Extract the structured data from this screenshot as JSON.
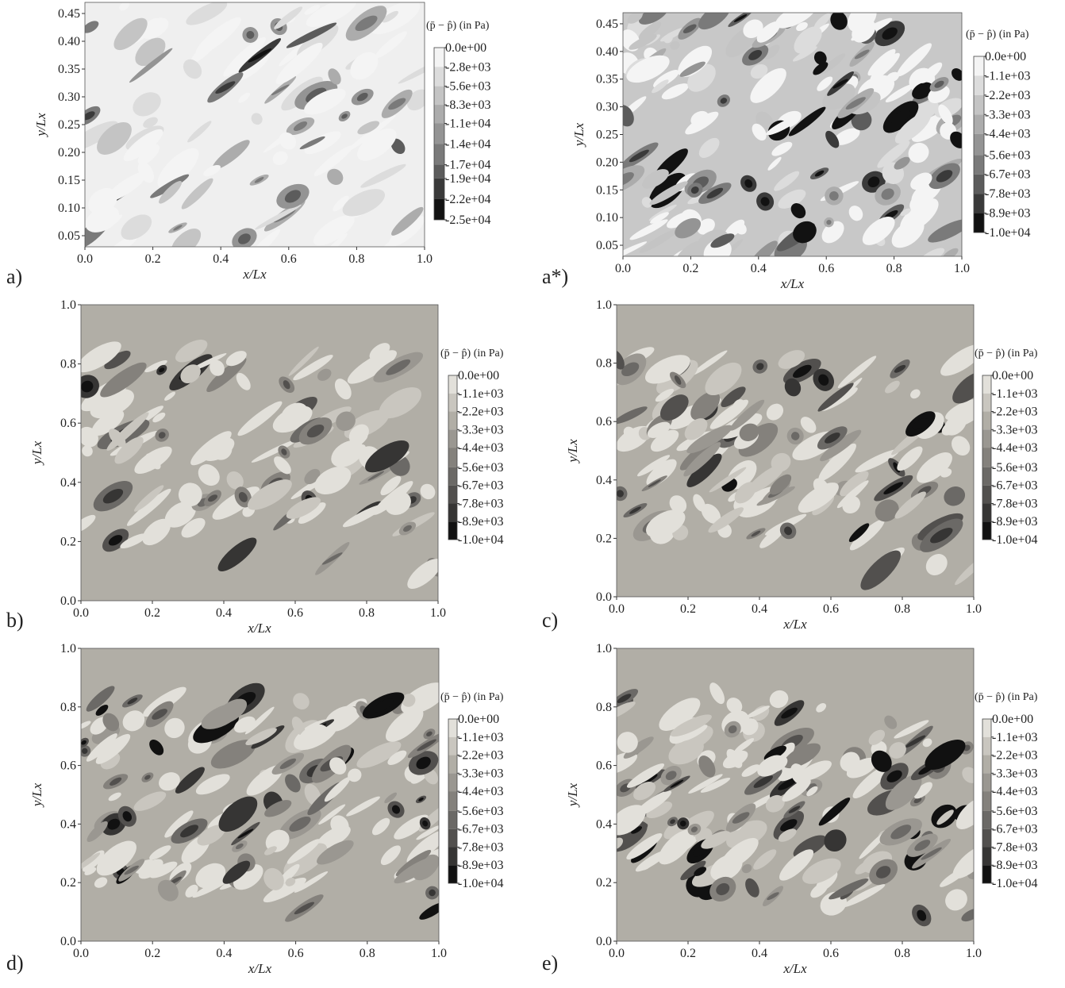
{
  "chart_data": [
    {
      "type": "contour",
      "panel": "a)",
      "xlabel": "x/Lx",
      "ylabel": "y/Lx",
      "xlim": [
        0,
        1
      ],
      "ylim": [
        0.03,
        0.47
      ],
      "xticks": [
        {
          "value": 0,
          "label": "0.0"
        },
        0.2,
        0.4,
        0.6,
        0.8,
        {
          "value": 1,
          "label": "1.0"
        }
      ],
      "yticks": [
        0.05,
        {
          "value": 0.1,
          "label": "0.10"
        },
        0.15,
        {
          "value": 0.2,
          "label": "0.20"
        },
        0.25,
        {
          "value": 0.3,
          "label": "0.30"
        },
        0.35,
        {
          "value": 0.4,
          "label": "0.40"
        },
        0.45
      ],
      "field_color": "#efefef",
      "colorbar": {
        "title": "(p̄ − p̂) (in Pa)",
        "colors": [
          "#f4f4f4",
          "#dcdcdc",
          "#c4c4c4",
          "#acacac",
          "#949494",
          "#7a7a7a",
          "#5c5c5c",
          "#3a3a3a",
          "#121212"
        ],
        "ticks": [
          {
            "value": 0,
            "label": "0.0e+00"
          },
          {
            "value": -2800,
            "label": "-2.8e+03"
          },
          {
            "value": -5600,
            "label": "-5.6e+03"
          },
          {
            "value": -8300,
            "label": "-8.3e+03"
          },
          {
            "value": -11000,
            "label": "-1.1e+04"
          },
          {
            "value": -14000,
            "label": "-1.4e+04"
          },
          {
            "value": -17000,
            "label": "-1.7e+04"
          },
          {
            "value": -19000,
            "label": "-1.9e+04"
          },
          {
            "value": -22000,
            "label": "-2.2e+04"
          },
          {
            "value": -25000,
            "label": "-2.5e+04"
          }
        ]
      }
    },
    {
      "type": "contour",
      "panel": "a*)",
      "xlabel": "x/Lx",
      "ylabel": "y/Lx",
      "xlim": [
        0,
        1
      ],
      "ylim": [
        0.03,
        0.47
      ],
      "xticks": [
        {
          "value": 0,
          "label": "0.0"
        },
        0.2,
        0.4,
        0.6,
        0.8,
        {
          "value": 1,
          "label": "1.0"
        }
      ],
      "yticks": [
        0.05,
        {
          "value": 0.1,
          "label": "0.10"
        },
        0.15,
        {
          "value": 0.2,
          "label": "0.20"
        },
        0.25,
        {
          "value": 0.3,
          "label": "0.30"
        },
        0.35,
        {
          "value": 0.4,
          "label": "0.40"
        },
        0.45
      ],
      "field_color": "#c8c8c8",
      "colorbar": {
        "title": "(p̄ − p̂) (in Pa)",
        "colors": [
          "#f4f4f4",
          "#dcdcdc",
          "#c4c4c4",
          "#acacac",
          "#949494",
          "#7a7a7a",
          "#5c5c5c",
          "#3a3a3a",
          "#121212"
        ],
        "ticks": [
          {
            "value": 0,
            "label": "0.0e+00"
          },
          {
            "value": -1100,
            "label": "-1.1e+03"
          },
          {
            "value": -2200,
            "label": "-2.2e+03"
          },
          {
            "value": -3300,
            "label": "-3.3e+03"
          },
          {
            "value": -4400,
            "label": "-4.4e+03"
          },
          {
            "value": -5600,
            "label": "-5.6e+03"
          },
          {
            "value": -6700,
            "label": "-6.7e+03"
          },
          {
            "value": -7800,
            "label": "-7.8e+03"
          },
          {
            "value": -8900,
            "label": "-8.9e+03"
          },
          {
            "value": -10000,
            "label": "-1.0e+04"
          }
        ]
      }
    },
    {
      "type": "contour",
      "panel": "b)",
      "xlabel": "x/Lx",
      "ylabel": "y/Lx",
      "xlim": [
        0,
        1
      ],
      "ylim": [
        0,
        1
      ],
      "xticks": [
        {
          "value": 0,
          "label": "0.0"
        },
        0.2,
        0.4,
        0.6,
        0.8,
        {
          "value": 1,
          "label": "1.0"
        }
      ],
      "yticks": [
        {
          "value": 0,
          "label": "0.0"
        },
        0.2,
        0.4,
        0.6,
        0.8,
        {
          "value": 1,
          "label": "1.0"
        }
      ],
      "field_color": "#b1aea6",
      "colorbar": {
        "title": "(p̄ − p̂) (in Pa)",
        "colors": [
          "#e2e0da",
          "#c9c6bf",
          "#b1aea6",
          "#9a9791",
          "#84817c",
          "#6b6966",
          "#52504e",
          "#363534",
          "#111111"
        ],
        "ticks": [
          {
            "value": 0,
            "label": "0.0e+00"
          },
          {
            "value": -1100,
            "label": "-1.1e+03"
          },
          {
            "value": -2200,
            "label": "-2.2e+03"
          },
          {
            "value": -3300,
            "label": "-3.3e+03"
          },
          {
            "value": -4400,
            "label": "-4.4e+03"
          },
          {
            "value": -5600,
            "label": "-5.6e+03"
          },
          {
            "value": -6700,
            "label": "-6.7e+03"
          },
          {
            "value": -7800,
            "label": "-7.8e+03"
          },
          {
            "value": -8900,
            "label": "-8.9e+03"
          },
          {
            "value": -10000,
            "label": "-1.0e+04"
          }
        ]
      }
    },
    {
      "type": "contour",
      "panel": "c)",
      "xlabel": "x/Lx",
      "ylabel": "y/Lx",
      "xlim": [
        0,
        1
      ],
      "ylim": [
        0,
        1
      ],
      "xticks": [
        {
          "value": 0,
          "label": "0.0"
        },
        0.2,
        0.4,
        0.6,
        0.8,
        {
          "value": 1,
          "label": "1.0"
        }
      ],
      "yticks": [
        {
          "value": 0,
          "label": "0.0"
        },
        0.2,
        0.4,
        0.6,
        0.8,
        {
          "value": 1,
          "label": "1.0"
        }
      ],
      "field_color": "#b1aea6",
      "colorbar": {
        "title": "(p̄ − p̂) (in Pa)",
        "colors": [
          "#e2e0da",
          "#c9c6bf",
          "#b1aea6",
          "#9a9791",
          "#84817c",
          "#6b6966",
          "#52504e",
          "#363534",
          "#111111"
        ],
        "ticks": [
          {
            "value": 0,
            "label": "0.0e+00"
          },
          {
            "value": -1100,
            "label": "-1.1e+03"
          },
          {
            "value": -2200,
            "label": "-2.2e+03"
          },
          {
            "value": -3300,
            "label": "-3.3e+03"
          },
          {
            "value": -4400,
            "label": "-4.4e+03"
          },
          {
            "value": -5600,
            "label": "-5.6e+03"
          },
          {
            "value": -6700,
            "label": "-6.7e+03"
          },
          {
            "value": -7800,
            "label": "-7.8e+03"
          },
          {
            "value": -8900,
            "label": "-8.9e+03"
          },
          {
            "value": -10000,
            "label": "-1.0e+04"
          }
        ]
      }
    },
    {
      "type": "contour",
      "panel": "d)",
      "xlabel": "x/Lx",
      "ylabel": "y/Lx",
      "xlim": [
        0,
        1
      ],
      "ylim": [
        0,
        1
      ],
      "xticks": [
        {
          "value": 0,
          "label": "0.0"
        },
        0.2,
        0.4,
        0.6,
        0.8,
        {
          "value": 1,
          "label": "1.0"
        }
      ],
      "yticks": [
        {
          "value": 0,
          "label": "0.0"
        },
        0.2,
        0.4,
        0.6,
        0.8,
        {
          "value": 1,
          "label": "1.0"
        }
      ],
      "field_color": "#b1aea6",
      "colorbar": {
        "title": "(p̄ − p̂) (in Pa)",
        "colors": [
          "#e2e0da",
          "#c9c6bf",
          "#b1aea6",
          "#9a9791",
          "#84817c",
          "#6b6966",
          "#52504e",
          "#363534",
          "#111111"
        ],
        "ticks": [
          {
            "value": 0,
            "label": "0.0e+00"
          },
          {
            "value": -1100,
            "label": "-1.1e+03"
          },
          {
            "value": -2200,
            "label": "-2.2e+03"
          },
          {
            "value": -3300,
            "label": "-3.3e+03"
          },
          {
            "value": -4400,
            "label": "-4.4e+03"
          },
          {
            "value": -5600,
            "label": "-5.6e+03"
          },
          {
            "value": -6700,
            "label": "-6.7e+03"
          },
          {
            "value": -7800,
            "label": "-7.8e+03"
          },
          {
            "value": -8900,
            "label": "-8.9e+03"
          },
          {
            "value": -10000,
            "label": "-1.0e+04"
          }
        ]
      }
    },
    {
      "type": "contour",
      "panel": "e)",
      "xlabel": "x/Lx",
      "ylabel": "y/Lx",
      "xlim": [
        0,
        1
      ],
      "ylim": [
        0,
        1
      ],
      "xticks": [
        {
          "value": 0,
          "label": "0.0"
        },
        0.2,
        0.4,
        0.6,
        0.8,
        {
          "value": 1,
          "label": "1.0"
        }
      ],
      "yticks": [
        {
          "value": 0,
          "label": "0.0"
        },
        0.2,
        0.4,
        0.6,
        0.8,
        {
          "value": 1,
          "label": "1.0"
        }
      ],
      "field_color": "#b1aea6",
      "colorbar": {
        "title": "(p̄ − p̂) (in Pa)",
        "colors": [
          "#e2e0da",
          "#c9c6bf",
          "#b1aea6",
          "#9a9791",
          "#84817c",
          "#6b6966",
          "#52504e",
          "#363534",
          "#111111"
        ],
        "ticks": [
          {
            "value": 0,
            "label": "0.0e+00"
          },
          {
            "value": -1100,
            "label": "-1.1e+03"
          },
          {
            "value": -2200,
            "label": "-2.2e+03"
          },
          {
            "value": -3300,
            "label": "-3.3e+03"
          },
          {
            "value": -4400,
            "label": "-4.4e+03"
          },
          {
            "value": -5600,
            "label": "-5.6e+03"
          },
          {
            "value": -6700,
            "label": "-6.7e+03"
          },
          {
            "value": -7800,
            "label": "-7.8e+03"
          },
          {
            "value": -8900,
            "label": "-8.9e+03"
          },
          {
            "value": -10000,
            "label": "-1.0e+04"
          }
        ]
      }
    }
  ]
}
